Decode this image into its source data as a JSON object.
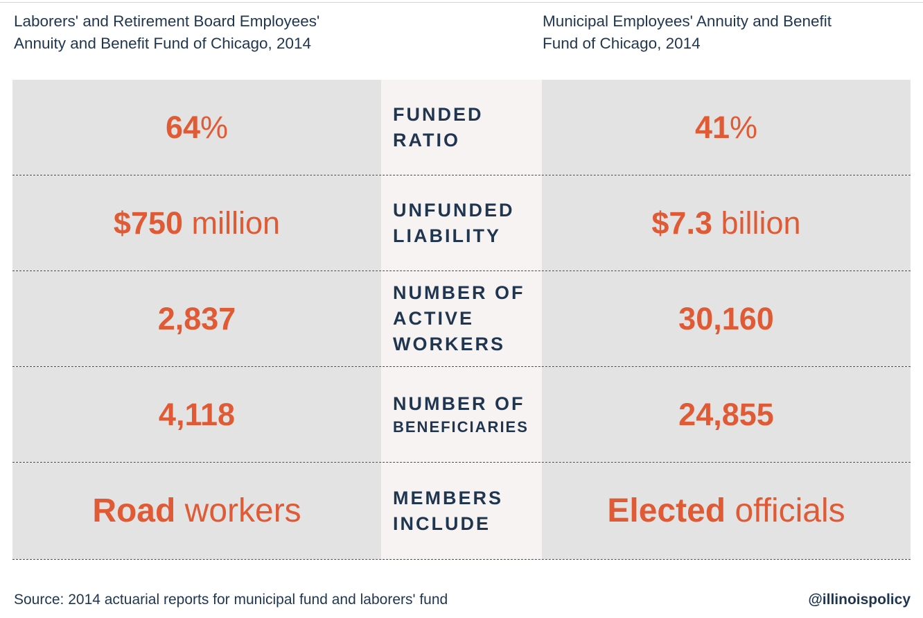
{
  "headers": {
    "left": [
      "Laborers' and Retirement Board Employees'",
      "Annuity and Benefit Fund of Chicago, 2014"
    ],
    "right": [
      "Municipal Employees' Annuity and Benefit",
      "Fund of Chicago, 2014"
    ]
  },
  "rows": [
    {
      "left": {
        "bold": "64",
        "normal": "%"
      },
      "label": [
        "FUNDED",
        "RATIO"
      ],
      "right": {
        "bold": "41",
        "normal": "%"
      }
    },
    {
      "left": {
        "bold": "$750",
        "normal": " million"
      },
      "label": [
        "UNFUNDED",
        "LIABILITY"
      ],
      "right": {
        "bold": "$7.3",
        "normal": " billion"
      }
    },
    {
      "left": {
        "bold": "2,837",
        "normal": ""
      },
      "label": [
        "NUMBER OF",
        "ACTIVE",
        "WORKERS"
      ],
      "right": {
        "bold": "30,160",
        "normal": ""
      }
    },
    {
      "left": {
        "bold": "4,118",
        "normal": ""
      },
      "label": [
        "NUMBER OF",
        "BENEFICIARIES"
      ],
      "right": {
        "bold": "24,855",
        "normal": ""
      }
    },
    {
      "left": {
        "bold": "Road",
        "normal": " workers"
      },
      "label": [
        "MEMBERS",
        "INCLUDE"
      ],
      "right": {
        "bold": "Elected",
        "normal": " officials"
      }
    }
  ],
  "footer": {
    "source": "Source: 2014 actuarial reports for municipal fund and laborers' fund",
    "handle": "@illinoispolicy"
  },
  "colors": {
    "value_accent": "#e05a35",
    "text_dark": "#1f3550",
    "cell_gray": "#e3e3e3",
    "label_bg": "#f7f3f2"
  }
}
